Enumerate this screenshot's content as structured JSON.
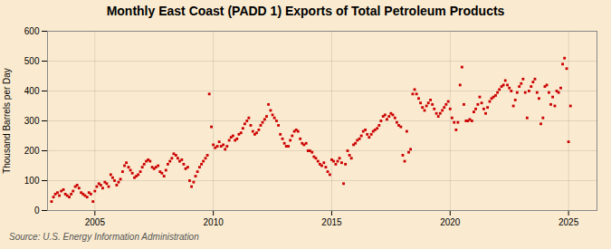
{
  "chart_data": {
    "type": "scatter",
    "title": "Monthly East Coast (PADD 1) Exports of Total Petroleum Products",
    "ylabel": "Thousand Barrels per Day",
    "annotations": [
      "Source: U.S. Energy Information Administration"
    ],
    "color": "#cc0000",
    "marker": "square",
    "grid": true,
    "xlim": [
      2003.0,
      2026.2
    ],
    "ylim": [
      0,
      600
    ],
    "xticks": [
      2005,
      2010,
      2015,
      2020,
      2025
    ],
    "yticks": [
      0,
      100,
      200,
      300,
      400,
      500,
      600
    ],
    "x": [
      2003.17,
      2003.25,
      2003.33,
      2003.42,
      2003.5,
      2003.58,
      2003.67,
      2003.75,
      2003.83,
      2003.92,
      2004.0,
      2004.08,
      2004.17,
      2004.25,
      2004.33,
      2004.42,
      2004.5,
      2004.58,
      2004.67,
      2004.75,
      2004.83,
      2004.92,
      2005.0,
      2005.08,
      2005.17,
      2005.25,
      2005.33,
      2005.42,
      2005.5,
      2005.58,
      2005.67,
      2005.75,
      2005.83,
      2005.92,
      2006.0,
      2006.08,
      2006.17,
      2006.25,
      2006.33,
      2006.42,
      2006.5,
      2006.58,
      2006.67,
      2006.75,
      2006.83,
      2006.92,
      2007.0,
      2007.08,
      2007.17,
      2007.25,
      2007.33,
      2007.42,
      2007.5,
      2007.58,
      2007.67,
      2007.75,
      2007.83,
      2007.92,
      2008.0,
      2008.08,
      2008.17,
      2008.25,
      2008.33,
      2008.42,
      2008.5,
      2008.58,
      2008.67,
      2008.75,
      2008.83,
      2008.92,
      2009.0,
      2009.08,
      2009.17,
      2009.25,
      2009.33,
      2009.42,
      2009.5,
      2009.58,
      2009.67,
      2009.75,
      2009.83,
      2009.92,
      2010.0,
      2010.08,
      2010.17,
      2010.25,
      2010.33,
      2010.42,
      2010.5,
      2010.58,
      2010.67,
      2010.75,
      2010.83,
      2010.92,
      2011.0,
      2011.08,
      2011.17,
      2011.25,
      2011.33,
      2011.42,
      2011.5,
      2011.58,
      2011.67,
      2011.75,
      2011.83,
      2011.92,
      2012.0,
      2012.08,
      2012.17,
      2012.25,
      2012.33,
      2012.42,
      2012.5,
      2012.58,
      2012.67,
      2012.75,
      2012.83,
      2012.92,
      2013.0,
      2013.08,
      2013.17,
      2013.25,
      2013.33,
      2013.42,
      2013.5,
      2013.58,
      2013.67,
      2013.75,
      2013.83,
      2013.92,
      2014.0,
      2014.08,
      2014.17,
      2014.25,
      2014.33,
      2014.42,
      2014.5,
      2014.58,
      2014.67,
      2014.75,
      2014.83,
      2014.92,
      2015.0,
      2015.08,
      2015.17,
      2015.25,
      2015.33,
      2015.42,
      2015.5,
      2015.58,
      2015.67,
      2015.75,
      2015.83,
      2015.92,
      2016.0,
      2016.08,
      2016.17,
      2016.25,
      2016.33,
      2016.42,
      2016.5,
      2016.58,
      2016.67,
      2016.75,
      2016.83,
      2016.92,
      2017.0,
      2017.08,
      2017.17,
      2017.25,
      2017.33,
      2017.42,
      2017.5,
      2017.58,
      2017.67,
      2017.75,
      2017.83,
      2017.92,
      2018.0,
      2018.08,
      2018.17,
      2018.25,
      2018.33,
      2018.42,
      2018.5,
      2018.58,
      2018.67,
      2018.75,
      2018.83,
      2018.92,
      2019.0,
      2019.08,
      2019.17,
      2019.25,
      2019.33,
      2019.42,
      2019.5,
      2019.58,
      2019.67,
      2019.75,
      2019.83,
      2019.92,
      2020.0,
      2020.08,
      2020.17,
      2020.25,
      2020.33,
      2020.42,
      2020.5,
      2020.58,
      2020.67,
      2020.75,
      2020.83,
      2020.92,
      2021.0,
      2021.08,
      2021.17,
      2021.25,
      2021.33,
      2021.42,
      2021.5,
      2021.58,
      2021.67,
      2021.75,
      2021.83,
      2021.92,
      2022.0,
      2022.08,
      2022.17,
      2022.25,
      2022.33,
      2022.42,
      2022.5,
      2022.58,
      2022.67,
      2022.75,
      2022.83,
      2022.92,
      2023.0,
      2023.08,
      2023.17,
      2023.25,
      2023.33,
      2023.42,
      2023.5,
      2023.58,
      2023.67,
      2023.75,
      2023.83,
      2023.92,
      2024.0,
      2024.08,
      2024.17,
      2024.25,
      2024.33,
      2024.42,
      2024.5,
      2024.58,
      2024.67,
      2024.75,
      2024.83,
      2024.92,
      2025.0,
      2025.08
    ],
    "values": [
      30,
      45,
      55,
      60,
      50,
      65,
      70,
      55,
      50,
      45,
      55,
      65,
      80,
      85,
      75,
      60,
      55,
      50,
      45,
      60,
      55,
      30,
      65,
      80,
      90,
      85,
      75,
      95,
      90,
      80,
      120,
      110,
      100,
      85,
      95,
      105,
      130,
      150,
      160,
      145,
      135,
      125,
      110,
      115,
      120,
      130,
      145,
      155,
      165,
      170,
      165,
      145,
      140,
      145,
      150,
      130,
      125,
      115,
      135,
      155,
      165,
      175,
      190,
      185,
      175,
      165,
      170,
      155,
      140,
      145,
      100,
      80,
      95,
      115,
      130,
      145,
      155,
      165,
      175,
      185,
      390,
      280,
      220,
      210,
      215,
      230,
      215,
      220,
      205,
      215,
      235,
      245,
      250,
      235,
      240,
      255,
      260,
      275,
      290,
      300,
      310,
      285,
      265,
      255,
      260,
      270,
      285,
      295,
      305,
      315,
      355,
      335,
      320,
      310,
      300,
      285,
      255,
      240,
      225,
      215,
      215,
      235,
      250,
      265,
      270,
      265,
      240,
      225,
      220,
      225,
      200,
      200,
      195,
      180,
      175,
      165,
      155,
      150,
      160,
      145,
      130,
      120,
      170,
      165,
      155,
      165,
      175,
      160,
      90,
      155,
      200,
      185,
      175,
      220,
      225,
      235,
      240,
      250,
      265,
      270,
      255,
      245,
      255,
      265,
      270,
      275,
      285,
      300,
      315,
      320,
      305,
      315,
      325,
      320,
      310,
      295,
      285,
      280,
      185,
      165,
      265,
      195,
      205,
      390,
      405,
      390,
      375,
      360,
      345,
      335,
      350,
      360,
      370,
      355,
      340,
      325,
      315,
      325,
      335,
      345,
      355,
      365,
      340,
      310,
      295,
      270,
      295,
      420,
      480,
      355,
      300,
      300,
      305,
      300,
      330,
      340,
      355,
      380,
      360,
      340,
      325,
      345,
      365,
      375,
      380,
      385,
      395,
      405,
      415,
      420,
      435,
      420,
      410,
      400,
      350,
      370,
      395,
      415,
      425,
      440,
      395,
      310,
      400,
      415,
      430,
      440,
      395,
      375,
      290,
      310,
      415,
      420,
      395,
      355,
      380,
      350,
      400,
      395,
      410,
      490,
      510,
      475,
      230,
      350
    ]
  }
}
